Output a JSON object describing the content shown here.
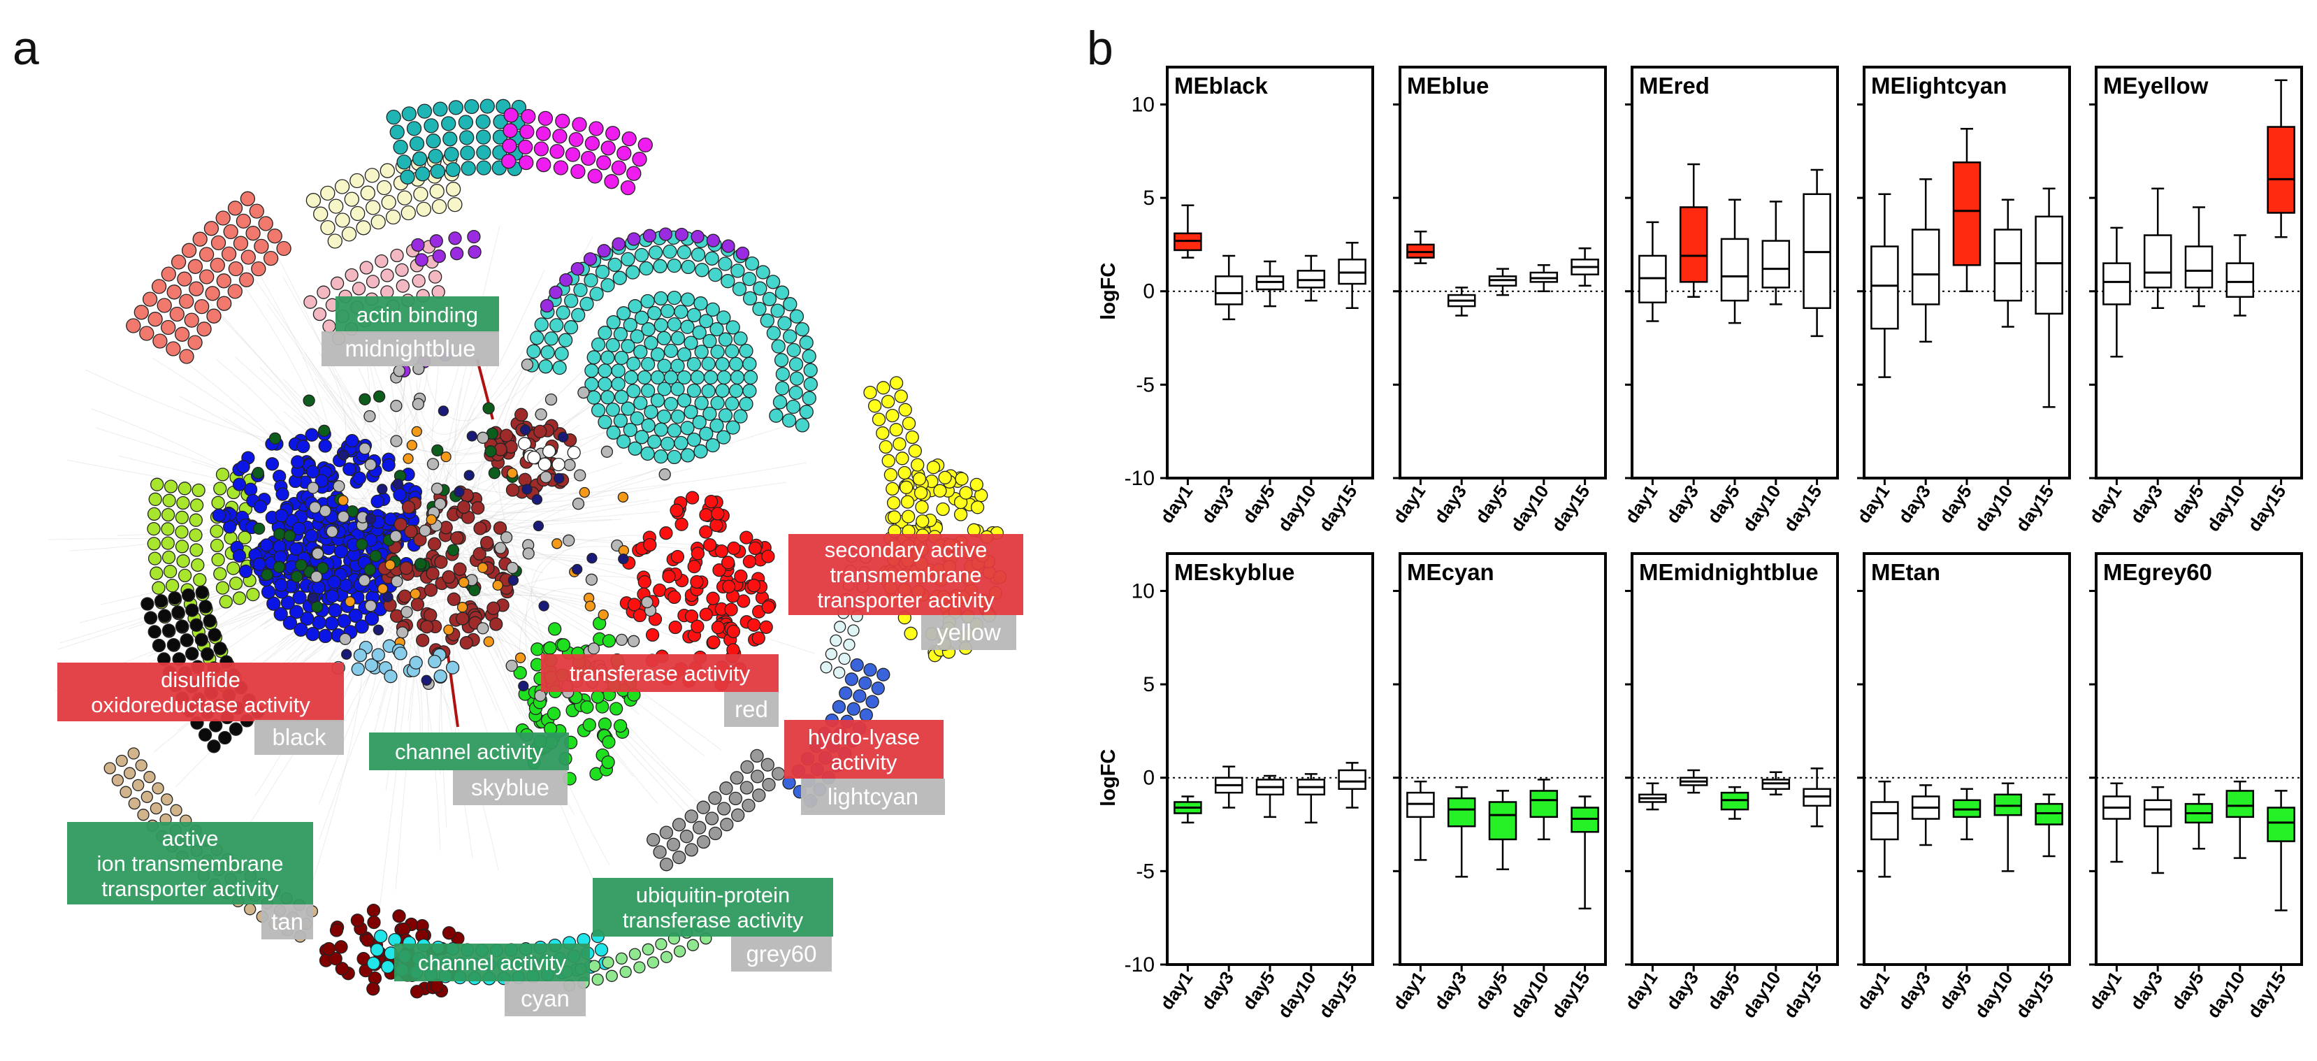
{
  "panel_a": {
    "letter": "a",
    "labels": [
      {
        "text": [
          "actin binding"
        ],
        "kind": "go",
        "color": "#2e9a5f"
      },
      {
        "text": [
          "midnightblue"
        ],
        "kind": "module",
        "color": "#b8b8b8"
      },
      {
        "text": [
          "secondary active",
          "transmembrane",
          "transporter activity"
        ],
        "kind": "go",
        "color": "#e23a3f"
      },
      {
        "text": [
          "yellow"
        ],
        "kind": "module",
        "color": "#b8b8b8"
      },
      {
        "text": [
          "transferase activity"
        ],
        "kind": "go",
        "color": "#e23a3f"
      },
      {
        "text": [
          "red"
        ],
        "kind": "module",
        "color": "#b8b8b8"
      },
      {
        "text": [
          "disulfide",
          "oxidoreductase activity"
        ],
        "kind": "go",
        "color": "#e23a3f"
      },
      {
        "text": [
          "black"
        ],
        "kind": "module",
        "color": "#b8b8b8"
      },
      {
        "text": [
          "hydro-lyase",
          "activity"
        ],
        "kind": "go",
        "color": "#e23a3f"
      },
      {
        "text": [
          "lightcyan"
        ],
        "kind": "module",
        "color": "#b8b8b8"
      },
      {
        "text": [
          "channel activity"
        ],
        "kind": "go",
        "color": "#2e9a5f"
      },
      {
        "text": [
          "skyblue"
        ],
        "kind": "module",
        "color": "#b8b8b8"
      },
      {
        "text": [
          "active",
          "ion transmembrane",
          "transporter activity"
        ],
        "kind": "go",
        "color": "#2e9a5f"
      },
      {
        "text": [
          "tan"
        ],
        "kind": "module",
        "color": "#b8b8b8"
      },
      {
        "text": [
          "ubiquitin-protein",
          "transferase activity"
        ],
        "kind": "go",
        "color": "#2e9a5f"
      },
      {
        "text": [
          "grey60"
        ],
        "kind": "module",
        "color": "#b8b8b8"
      },
      {
        "text": [
          "channel activity"
        ],
        "kind": "go",
        "color": "#2e9a5f"
      },
      {
        "text": [
          "cyan"
        ],
        "kind": "module",
        "color": "#b8b8b8"
      }
    ],
    "module_colors": {
      "magenta": "#ee1cee",
      "turquoise": "#44d6cc",
      "teal_cyan": "#1fb5b5",
      "lightyellow": "#f6f6c8",
      "salmon": "#f0786c",
      "pink": "#f3b8c2",
      "purple": "#9a2be0",
      "blue": "#0b16e6",
      "brown": "#9e2a2a",
      "darkgreen": "#0d5e1c",
      "greenyellow": "#a8e62e",
      "black": "#0a0a0a",
      "yellow": "#ffff1a",
      "red": "#ff1010",
      "green": "#1fe01f",
      "lightcyan": "#dff4f4",
      "royalblue": "#3a64dc",
      "grey60": "#9a9a9a",
      "darkred": "#800000",
      "cyan": "#20e6ea",
      "tan": "#d2b48c",
      "lightgreen": "#8fe88f",
      "midnightblue": "#1a1a78",
      "orange": "#f59a18",
      "grey": "#b8b8b8",
      "white": "#ffffff",
      "skyblue": "#87cdea"
    }
  },
  "panel_b": {
    "letter": "b"
  },
  "chart_data": {
    "type": "boxplot",
    "ylabel": "logFC",
    "ylim": [
      -10,
      12
    ],
    "yticks": [
      -10,
      -5,
      0,
      5,
      10
    ],
    "categories": [
      "day1",
      "day3",
      "day5",
      "day10",
      "day15"
    ],
    "reference_line": 0,
    "colors": {
      "up": "#ff2a10",
      "down": "#26f026",
      "neutral": "#ffffff"
    },
    "panels": [
      {
        "title": "MEblack",
        "boxes": [
          {
            "min": 1.8,
            "q1": 2.2,
            "median": 2.7,
            "q3": 3.1,
            "max": 4.6,
            "fill": "up"
          },
          {
            "min": -1.5,
            "q1": -0.7,
            "median": -0.1,
            "q3": 0.8,
            "max": 1.9,
            "fill": "neutral"
          },
          {
            "min": -0.8,
            "q1": 0.1,
            "median": 0.5,
            "q3": 0.8,
            "max": 1.6,
            "fill": "neutral"
          },
          {
            "min": -0.5,
            "q1": 0.2,
            "median": 0.6,
            "q3": 1.1,
            "max": 1.9,
            "fill": "neutral"
          },
          {
            "min": -0.9,
            "q1": 0.4,
            "median": 1.0,
            "q3": 1.7,
            "max": 2.6,
            "fill": "neutral"
          }
        ]
      },
      {
        "title": "MEblue",
        "boxes": [
          {
            "min": 1.5,
            "q1": 1.8,
            "median": 2.1,
            "q3": 2.5,
            "max": 3.2,
            "fill": "up"
          },
          {
            "min": -1.3,
            "q1": -0.8,
            "median": -0.5,
            "q3": -0.2,
            "max": 0.2,
            "fill": "neutral"
          },
          {
            "min": -0.2,
            "q1": 0.3,
            "median": 0.6,
            "q3": 0.8,
            "max": 1.2,
            "fill": "neutral"
          },
          {
            "min": 0.0,
            "q1": 0.5,
            "median": 0.7,
            "q3": 1.0,
            "max": 1.4,
            "fill": "neutral"
          },
          {
            "min": 0.3,
            "q1": 0.9,
            "median": 1.3,
            "q3": 1.7,
            "max": 2.3,
            "fill": "neutral"
          }
        ]
      },
      {
        "title": "MEred",
        "boxes": [
          {
            "min": -1.6,
            "q1": -0.6,
            "median": 0.7,
            "q3": 1.9,
            "max": 3.7,
            "fill": "neutral"
          },
          {
            "min": -0.3,
            "q1": 0.5,
            "median": 1.9,
            "q3": 4.5,
            "max": 6.8,
            "fill": "up"
          },
          {
            "min": -1.7,
            "q1": -0.5,
            "median": 0.8,
            "q3": 2.8,
            "max": 4.9,
            "fill": "neutral"
          },
          {
            "min": -0.7,
            "q1": 0.2,
            "median": 1.2,
            "q3": 2.7,
            "max": 4.8,
            "fill": "neutral"
          },
          {
            "min": -2.4,
            "q1": -0.9,
            "median": 2.1,
            "q3": 5.2,
            "max": 6.5,
            "fill": "neutral"
          }
        ]
      },
      {
        "title": "MElightcyan",
        "boxes": [
          {
            "min": -4.6,
            "q1": -2.0,
            "median": 0.3,
            "q3": 2.4,
            "max": 5.2,
            "fill": "neutral"
          },
          {
            "min": -2.7,
            "q1": -0.7,
            "median": 0.9,
            "q3": 3.3,
            "max": 6.0,
            "fill": "neutral"
          },
          {
            "min": 0.0,
            "q1": 1.4,
            "median": 4.3,
            "q3": 6.9,
            "max": 8.7,
            "fill": "up"
          },
          {
            "min": -1.9,
            "q1": -0.5,
            "median": 1.5,
            "q3": 3.3,
            "max": 4.9,
            "fill": "neutral"
          },
          {
            "min": -6.2,
            "q1": -1.2,
            "median": 1.5,
            "q3": 4.0,
            "max": 5.5,
            "fill": "neutral"
          }
        ]
      },
      {
        "title": "MEyellow",
        "boxes": [
          {
            "min": -3.5,
            "q1": -0.7,
            "median": 0.5,
            "q3": 1.5,
            "max": 3.4,
            "fill": "neutral"
          },
          {
            "min": -0.9,
            "q1": 0.2,
            "median": 1.0,
            "q3": 3.0,
            "max": 5.5,
            "fill": "neutral"
          },
          {
            "min": -0.8,
            "q1": 0.2,
            "median": 1.1,
            "q3": 2.4,
            "max": 4.5,
            "fill": "neutral"
          },
          {
            "min": -1.3,
            "q1": -0.3,
            "median": 0.5,
            "q3": 1.5,
            "max": 3.0,
            "fill": "neutral"
          },
          {
            "min": 2.9,
            "q1": 4.2,
            "median": 6.0,
            "q3": 8.8,
            "max": 11.3,
            "fill": "up"
          }
        ]
      },
      {
        "title": "MEskyblue",
        "boxes": [
          {
            "min": -2.4,
            "q1": -1.9,
            "median": -1.6,
            "q3": -1.3,
            "max": -1.0,
            "fill": "down"
          },
          {
            "min": -1.6,
            "q1": -0.8,
            "median": -0.4,
            "q3": 0.0,
            "max": 0.6,
            "fill": "neutral"
          },
          {
            "min": -2.1,
            "q1": -0.9,
            "median": -0.5,
            "q3": -0.1,
            "max": 0.1,
            "fill": "neutral"
          },
          {
            "min": -2.4,
            "q1": -0.9,
            "median": -0.5,
            "q3": -0.1,
            "max": 0.2,
            "fill": "neutral"
          },
          {
            "min": -1.6,
            "q1": -0.6,
            "median": -0.2,
            "q3": 0.4,
            "max": 0.8,
            "fill": "neutral"
          }
        ]
      },
      {
        "title": "MEcyan",
        "boxes": [
          {
            "min": -4.4,
            "q1": -2.1,
            "median": -1.4,
            "q3": -0.8,
            "max": -0.2,
            "fill": "neutral"
          },
          {
            "min": -5.3,
            "q1": -2.6,
            "median": -1.7,
            "q3": -1.1,
            "max": -0.5,
            "fill": "down"
          },
          {
            "min": -4.9,
            "q1": -3.3,
            "median": -2.0,
            "q3": -1.3,
            "max": -0.7,
            "fill": "down"
          },
          {
            "min": -3.3,
            "q1": -2.1,
            "median": -1.2,
            "q3": -0.7,
            "max": -0.1,
            "fill": "down"
          },
          {
            "min": -7.0,
            "q1": -2.9,
            "median": -2.2,
            "q3": -1.6,
            "max": -1.0,
            "fill": "down"
          }
        ]
      },
      {
        "title": "MEmidnightblue",
        "boxes": [
          {
            "min": -1.7,
            "q1": -1.3,
            "median": -1.1,
            "q3": -0.9,
            "max": -0.3,
            "fill": "neutral"
          },
          {
            "min": -0.8,
            "q1": -0.4,
            "median": -0.2,
            "q3": 0.0,
            "max": 0.4,
            "fill": "neutral"
          },
          {
            "min": -2.2,
            "q1": -1.7,
            "median": -1.2,
            "q3": -0.8,
            "max": -0.5,
            "fill": "down"
          },
          {
            "min": -0.9,
            "q1": -0.6,
            "median": -0.3,
            "q3": -0.1,
            "max": 0.3,
            "fill": "neutral"
          },
          {
            "min": -2.6,
            "q1": -1.5,
            "median": -1.0,
            "q3": -0.6,
            "max": 0.5,
            "fill": "neutral"
          }
        ]
      },
      {
        "title": "MEtan",
        "boxes": [
          {
            "min": -5.3,
            "q1": -3.3,
            "median": -1.9,
            "q3": -1.3,
            "max": -0.2,
            "fill": "neutral"
          },
          {
            "min": -3.6,
            "q1": -2.2,
            "median": -1.6,
            "q3": -1.0,
            "max": -0.4,
            "fill": "neutral"
          },
          {
            "min": -3.3,
            "q1": -2.1,
            "median": -1.7,
            "q3": -1.2,
            "max": -0.6,
            "fill": "down"
          },
          {
            "min": -5.0,
            "q1": -2.0,
            "median": -1.5,
            "q3": -0.9,
            "max": -0.3,
            "fill": "down"
          },
          {
            "min": -4.2,
            "q1": -2.5,
            "median": -1.9,
            "q3": -1.4,
            "max": -0.9,
            "fill": "down"
          }
        ]
      },
      {
        "title": "MEgrey60",
        "boxes": [
          {
            "min": -4.5,
            "q1": -2.2,
            "median": -1.6,
            "q3": -1.0,
            "max": -0.3,
            "fill": "neutral"
          },
          {
            "min": -5.1,
            "q1": -2.6,
            "median": -1.7,
            "q3": -1.2,
            "max": -0.5,
            "fill": "neutral"
          },
          {
            "min": -3.8,
            "q1": -2.4,
            "median": -1.9,
            "q3": -1.4,
            "max": -0.9,
            "fill": "down"
          },
          {
            "min": -4.3,
            "q1": -2.1,
            "median": -1.5,
            "q3": -0.7,
            "max": -0.2,
            "fill": "down"
          },
          {
            "min": -7.1,
            "q1": -3.4,
            "median": -2.4,
            "q3": -1.6,
            "max": -0.7,
            "fill": "down"
          }
        ]
      }
    ]
  }
}
